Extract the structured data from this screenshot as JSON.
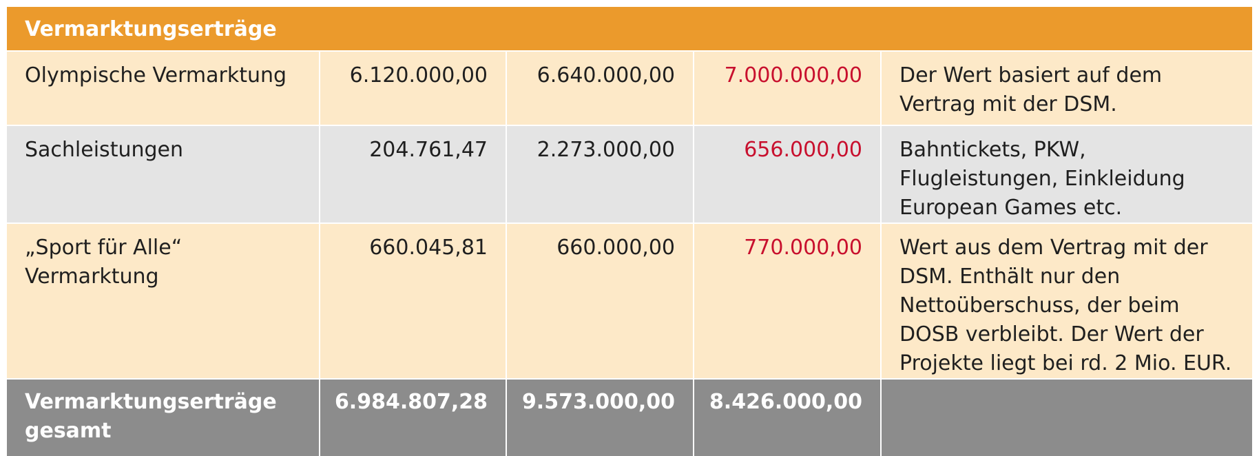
{
  "section_title": "Vermarktungserträge",
  "rows": [
    {
      "label": "Olympische Vermarktung",
      "v1": "6.120.000,00",
      "v2": "6.640.000,00",
      "v3": "7.000.000,00",
      "note": "Der Wert basiert auf dem Vertrag mit der DSM."
    },
    {
      "label": "Sachleistungen",
      "v1": "204.761,47",
      "v2": "2.273.000,00",
      "v3": "656.000,00",
      "note": "Bahntickets, PKW, Flugleistungen, Einkleidung European Games etc."
    },
    {
      "label": "„Sport für Alle“\nVermarktung",
      "v1": "660.045,81",
      "v2": "660.000,00",
      "v3": "770.000,00",
      "note": "Wert aus dem Vertrag mit der DSM. Enthält nur den Nettoüberschuss, der beim DOSB verbleibt. Der Wert der Projekte liegt bei rd. 2 Mio. EUR."
    }
  ],
  "total": {
    "label": "Vermarktungserträge gesamt",
    "v1": "6.984.807,28",
    "v2": "9.573.000,00",
    "v3": "8.426.000,00"
  },
  "colors": {
    "header_orange": "#eb9a2c",
    "row_light_orange": "#fde9c8",
    "row_gray": "#e4e4e4",
    "total_gray": "#8c8c8c",
    "highlight_red": "#c8102e"
  }
}
